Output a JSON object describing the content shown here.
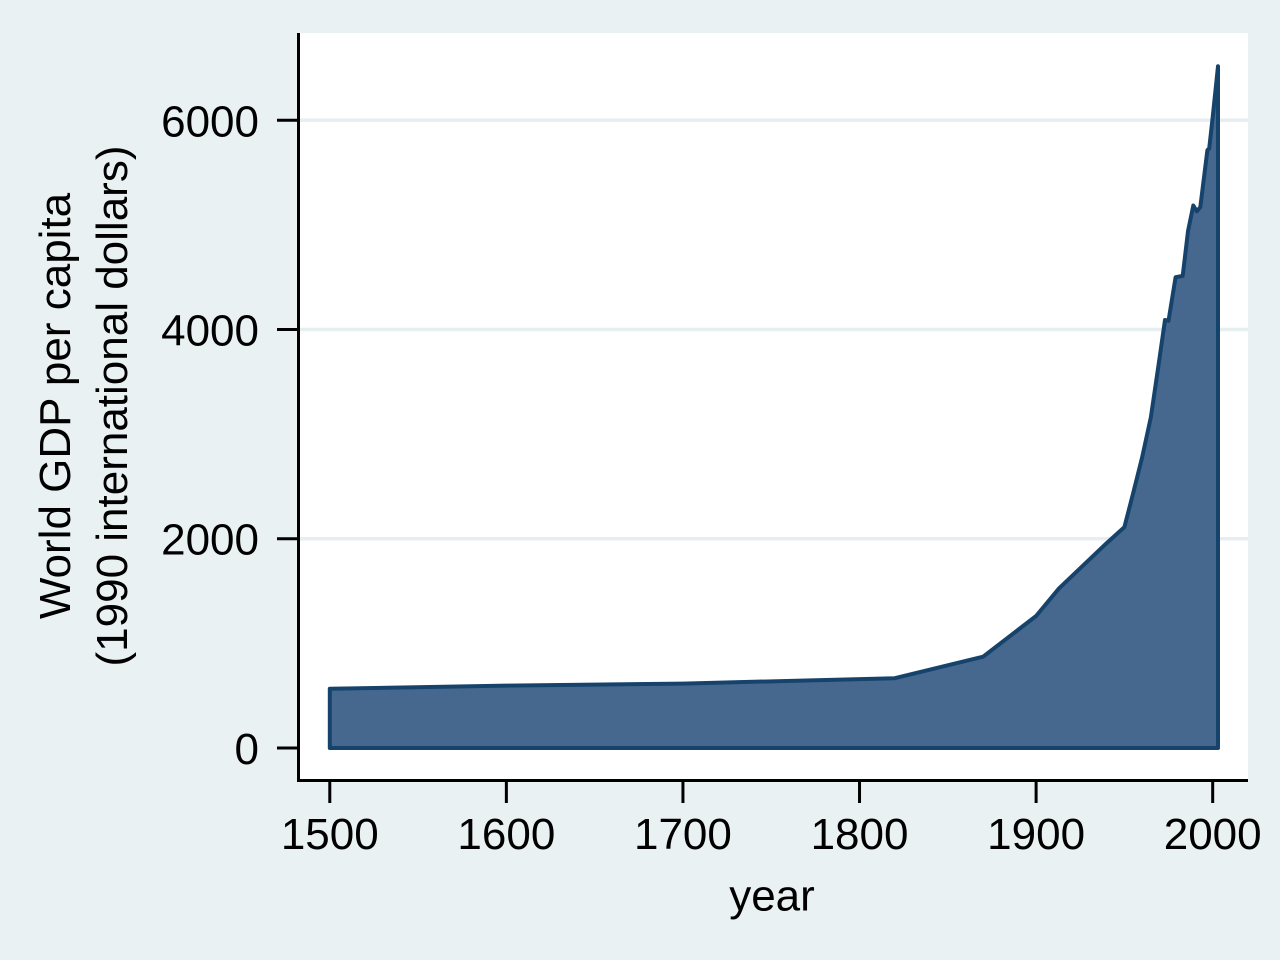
{
  "chart_data": {
    "type": "area",
    "title": "",
    "xlabel": "year",
    "ylabel_line1": "World GDP per capita",
    "ylabel_line2": "(1990 international dollars)",
    "x_ticks": [
      1500,
      1600,
      1700,
      1800,
      1900,
      2000
    ],
    "y_ticks": [
      0,
      2000,
      4000,
      6000
    ],
    "gridlines_at": [
      2000,
      4000,
      6000
    ],
    "xlim": [
      1482,
      2020
    ],
    "ylim": [
      -306,
      6834
    ],
    "grid": "horizontal gridlines on white plot background",
    "legend": "none",
    "series": [
      {
        "name": "World GDP per capita",
        "points": [
          [
            1500,
            566
          ],
          [
            1600,
            596
          ],
          [
            1700,
            615
          ],
          [
            1820,
            667
          ],
          [
            1870,
            873
          ],
          [
            1900,
            1262
          ],
          [
            1913,
            1526
          ],
          [
            1940,
            1958
          ],
          [
            1950,
            2111
          ],
          [
            1955,
            2437
          ],
          [
            1960,
            2777
          ],
          [
            1965,
            3164
          ],
          [
            1970,
            3736
          ],
          [
            1973,
            4091
          ],
          [
            1975,
            4083
          ],
          [
            1979,
            4500
          ],
          [
            1983,
            4512
          ],
          [
            1986,
            4940
          ],
          [
            1989,
            5185
          ],
          [
            1991,
            5130
          ],
          [
            1993,
            5170
          ],
          [
            1997,
            5715
          ],
          [
            1998,
            5730
          ],
          [
            2000,
            6030
          ],
          [
            2003,
            6516
          ]
        ]
      }
    ],
    "colors": {
      "background": "#eaf1f3",
      "plot_background": "#ffffff",
      "gridline": "#e7eef0",
      "area_fill": "#47688e",
      "area_outline": "#16436c",
      "axis": "#000000",
      "text": "#000000"
    }
  }
}
